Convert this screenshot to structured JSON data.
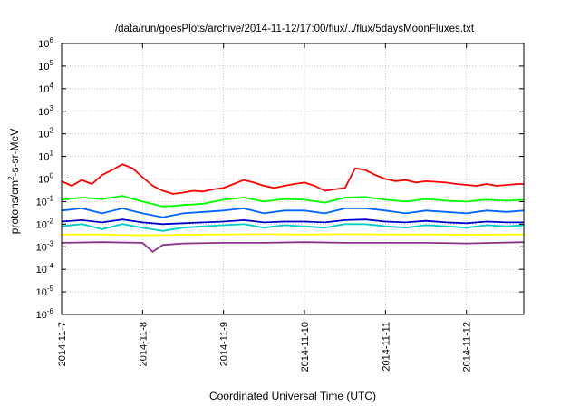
{
  "chart_data": {
    "type": "line",
    "title": "/data/run/goesPlots/archive/2014-11-12/17:00/flux/../flux/5daysMoonFluxes.txt",
    "xlabel": "Coordinated Universal Time (UTC)",
    "ylabel": {
      "prefix": "protons/cm",
      "sup": "2",
      "suffix": "-s-sr-MeV"
    },
    "x_ticks": [
      "2014-11-7",
      "2014-11-8",
      "2014-11-9",
      "2014-11-10",
      "2014-11-11",
      "2014-11-12"
    ],
    "x_range": [
      "2014-11-07T00:00",
      "2014-11-12T17:00"
    ],
    "y_scale": "log",
    "ylim": [
      1e-06,
      1000000.0
    ],
    "y_ticks": [
      {
        "base": "10",
        "exp": "-6"
      },
      {
        "base": "10",
        "exp": "-5"
      },
      {
        "base": "10",
        "exp": "-4"
      },
      {
        "base": "10",
        "exp": "-3"
      },
      {
        "base": "10",
        "exp": "-2"
      },
      {
        "base": "10",
        "exp": "-1"
      },
      {
        "base": "10",
        "exp": "0"
      },
      {
        "base": "10",
        "exp": "1"
      },
      {
        "base": "10",
        "exp": "2"
      },
      {
        "base": "10",
        "exp": "3"
      },
      {
        "base": "10",
        "exp": "4"
      },
      {
        "base": "10",
        "exp": "5"
      },
      {
        "base": "10",
        "exp": "6"
      }
    ],
    "grid": true,
    "legend": "none",
    "series": [
      {
        "color": "#ff0000",
        "points": [
          [
            "2014-11-07T00:00",
            0.8
          ],
          [
            "2014-11-07T03:00",
            0.5
          ],
          [
            "2014-11-07T06:00",
            0.9
          ],
          [
            "2014-11-07T09:00",
            0.6
          ],
          [
            "2014-11-07T12:00",
            1.5
          ],
          [
            "2014-11-07T15:00",
            2.5
          ],
          [
            "2014-11-07T18:00",
            4.5
          ],
          [
            "2014-11-07T21:00",
            3.0
          ],
          [
            "2014-11-08T00:00",
            1.2
          ],
          [
            "2014-11-08T03:00",
            0.5
          ],
          [
            "2014-11-08T06:00",
            0.3
          ],
          [
            "2014-11-08T09:00",
            0.22
          ],
          [
            "2014-11-08T12:00",
            0.25
          ],
          [
            "2014-11-08T15:00",
            0.3
          ],
          [
            "2014-11-08T18:00",
            0.28
          ],
          [
            "2014-11-08T21:00",
            0.35
          ],
          [
            "2014-11-09T00:00",
            0.4
          ],
          [
            "2014-11-09T03:00",
            0.6
          ],
          [
            "2014-11-09T06:00",
            0.9
          ],
          [
            "2014-11-09T09:00",
            0.7
          ],
          [
            "2014-11-09T12:00",
            0.5
          ],
          [
            "2014-11-09T15:00",
            0.4
          ],
          [
            "2014-11-09T18:00",
            0.5
          ],
          [
            "2014-11-09T21:00",
            0.6
          ],
          [
            "2014-11-10T00:00",
            0.7
          ],
          [
            "2014-11-10T03:00",
            0.5
          ],
          [
            "2014-11-10T06:00",
            0.3
          ],
          [
            "2014-11-10T09:00",
            0.35
          ],
          [
            "2014-11-10T12:00",
            0.4
          ],
          [
            "2014-11-10T15:00",
            3.0
          ],
          [
            "2014-11-10T18:00",
            2.5
          ],
          [
            "2014-11-10T21:00",
            1.5
          ],
          [
            "2014-11-11T00:00",
            1.0
          ],
          [
            "2014-11-11T03:00",
            0.8
          ],
          [
            "2014-11-11T06:00",
            0.9
          ],
          [
            "2014-11-11T09:00",
            0.7
          ],
          [
            "2014-11-11T12:00",
            0.8
          ],
          [
            "2014-11-11T15:00",
            0.75
          ],
          [
            "2014-11-11T18:00",
            0.7
          ],
          [
            "2014-11-11T21:00",
            0.6
          ],
          [
            "2014-11-12T00:00",
            0.55
          ],
          [
            "2014-11-12T03:00",
            0.5
          ],
          [
            "2014-11-12T06:00",
            0.6
          ],
          [
            "2014-11-12T09:00",
            0.5
          ],
          [
            "2014-11-12T12:00",
            0.55
          ],
          [
            "2014-11-12T15:00",
            0.6
          ],
          [
            "2014-11-12T17:00",
            0.6
          ]
        ]
      },
      {
        "color": "#00ff00",
        "points": [
          [
            "2014-11-07T00:00",
            0.12
          ],
          [
            "2014-11-07T06:00",
            0.15
          ],
          [
            "2014-11-07T12:00",
            0.13
          ],
          [
            "2014-11-07T18:00",
            0.18
          ],
          [
            "2014-11-08T00:00",
            0.1
          ],
          [
            "2014-11-08T06:00",
            0.06
          ],
          [
            "2014-11-08T12:00",
            0.07
          ],
          [
            "2014-11-08T18:00",
            0.08
          ],
          [
            "2014-11-09T00:00",
            0.12
          ],
          [
            "2014-11-09T06:00",
            0.15
          ],
          [
            "2014-11-09T12:00",
            0.1
          ],
          [
            "2014-11-09T18:00",
            0.13
          ],
          [
            "2014-11-10T00:00",
            0.12
          ],
          [
            "2014-11-10T06:00",
            0.09
          ],
          [
            "2014-11-10T12:00",
            0.15
          ],
          [
            "2014-11-10T18:00",
            0.16
          ],
          [
            "2014-11-11T00:00",
            0.12
          ],
          [
            "2014-11-11T06:00",
            0.1
          ],
          [
            "2014-11-11T12:00",
            0.13
          ],
          [
            "2014-11-11T18:00",
            0.11
          ],
          [
            "2014-11-12T00:00",
            0.1
          ],
          [
            "2014-11-12T06:00",
            0.12
          ],
          [
            "2014-11-12T12:00",
            0.11
          ],
          [
            "2014-11-12T17:00",
            0.12
          ]
        ]
      },
      {
        "color": "#0066ff",
        "points": [
          [
            "2014-11-07T00:00",
            0.04
          ],
          [
            "2014-11-07T06:00",
            0.05
          ],
          [
            "2014-11-07T12:00",
            0.03
          ],
          [
            "2014-11-07T18:00",
            0.05
          ],
          [
            "2014-11-08T00:00",
            0.03
          ],
          [
            "2014-11-08T06:00",
            0.02
          ],
          [
            "2014-11-08T12:00",
            0.03
          ],
          [
            "2014-11-08T18:00",
            0.035
          ],
          [
            "2014-11-09T00:00",
            0.04
          ],
          [
            "2014-11-09T06:00",
            0.05
          ],
          [
            "2014-11-09T12:00",
            0.03
          ],
          [
            "2014-11-09T18:00",
            0.04
          ],
          [
            "2014-11-10T00:00",
            0.04
          ],
          [
            "2014-11-10T06:00",
            0.03
          ],
          [
            "2014-11-10T12:00",
            0.05
          ],
          [
            "2014-11-10T18:00",
            0.05
          ],
          [
            "2014-11-11T00:00",
            0.04
          ],
          [
            "2014-11-11T06:00",
            0.03
          ],
          [
            "2014-11-11T12:00",
            0.04
          ],
          [
            "2014-11-11T18:00",
            0.035
          ],
          [
            "2014-11-12T00:00",
            0.03
          ],
          [
            "2014-11-12T06:00",
            0.04
          ],
          [
            "2014-11-12T12:00",
            0.035
          ],
          [
            "2014-11-12T17:00",
            0.04
          ]
        ]
      },
      {
        "color": "#00cccc",
        "points": [
          [
            "2014-11-07T00:00",
            0.008
          ],
          [
            "2014-11-07T06:00",
            0.01
          ],
          [
            "2014-11-07T12:00",
            0.006
          ],
          [
            "2014-11-07T18:00",
            0.01
          ],
          [
            "2014-11-08T00:00",
            0.007
          ],
          [
            "2014-11-08T06:00",
            0.005
          ],
          [
            "2014-11-08T12:00",
            0.007
          ],
          [
            "2014-11-08T18:00",
            0.008
          ],
          [
            "2014-11-09T00:00",
            0.009
          ],
          [
            "2014-11-09T06:00",
            0.01
          ],
          [
            "2014-11-09T12:00",
            0.007
          ],
          [
            "2014-11-09T18:00",
            0.009
          ],
          [
            "2014-11-10T00:00",
            0.008
          ],
          [
            "2014-11-10T06:00",
            0.007
          ],
          [
            "2014-11-10T12:00",
            0.01
          ],
          [
            "2014-11-10T18:00",
            0.01
          ],
          [
            "2014-11-11T00:00",
            0.008
          ],
          [
            "2014-11-11T06:00",
            0.007
          ],
          [
            "2014-11-11T12:00",
            0.009
          ],
          [
            "2014-11-11T18:00",
            0.008
          ],
          [
            "2014-11-12T00:00",
            0.007
          ],
          [
            "2014-11-12T06:00",
            0.009
          ],
          [
            "2014-11-12T12:00",
            0.008
          ],
          [
            "2014-11-12T17:00",
            0.009
          ]
        ]
      },
      {
        "color": "#0000cc",
        "points": [
          [
            "2014-11-07T00:00",
            0.013
          ],
          [
            "2014-11-07T06:00",
            0.015
          ],
          [
            "2014-11-07T12:00",
            0.012
          ],
          [
            "2014-11-07T18:00",
            0.016
          ],
          [
            "2014-11-08T00:00",
            0.012
          ],
          [
            "2014-11-08T06:00",
            0.01
          ],
          [
            "2014-11-08T12:00",
            0.011
          ],
          [
            "2014-11-08T18:00",
            0.012
          ],
          [
            "2014-11-09T00:00",
            0.013
          ],
          [
            "2014-11-09T06:00",
            0.015
          ],
          [
            "2014-11-09T12:00",
            0.012
          ],
          [
            "2014-11-09T18:00",
            0.013
          ],
          [
            "2014-11-10T00:00",
            0.013
          ],
          [
            "2014-11-10T06:00",
            0.012
          ],
          [
            "2014-11-10T12:00",
            0.015
          ],
          [
            "2014-11-10T18:00",
            0.016
          ],
          [
            "2014-11-11T00:00",
            0.013
          ],
          [
            "2014-11-11T06:00",
            0.012
          ],
          [
            "2014-11-11T12:00",
            0.014
          ],
          [
            "2014-11-11T18:00",
            0.012
          ],
          [
            "2014-11-12T00:00",
            0.011
          ],
          [
            "2014-11-12T06:00",
            0.013
          ],
          [
            "2014-11-12T12:00",
            0.012
          ],
          [
            "2014-11-12T17:00",
            0.012
          ]
        ]
      },
      {
        "color": "#ffff00",
        "points": [
          [
            "2014-11-07T00:00",
            0.0035
          ],
          [
            "2014-11-07T12:00",
            0.0035
          ],
          [
            "2014-11-08T00:00",
            0.0032
          ],
          [
            "2014-11-08T12:00",
            0.0034
          ],
          [
            "2014-11-09T00:00",
            0.0035
          ],
          [
            "2014-11-09T12:00",
            0.0036
          ],
          [
            "2014-11-10T00:00",
            0.0035
          ],
          [
            "2014-11-10T12:00",
            0.0036
          ],
          [
            "2014-11-11T00:00",
            0.0035
          ],
          [
            "2014-11-11T12:00",
            0.0035
          ],
          [
            "2014-11-12T00:00",
            0.0034
          ],
          [
            "2014-11-12T17:00",
            0.0035
          ]
        ]
      },
      {
        "color": "#883388",
        "points": [
          [
            "2014-11-07T00:00",
            0.0015
          ],
          [
            "2014-11-07T12:00",
            0.0016
          ],
          [
            "2014-11-08T00:00",
            0.0015
          ],
          [
            "2014-11-08T03:00",
            0.0006
          ],
          [
            "2014-11-08T06:00",
            0.0012
          ],
          [
            "2014-11-08T12:00",
            0.0014
          ],
          [
            "2014-11-09T00:00",
            0.0015
          ],
          [
            "2014-11-09T12:00",
            0.0015
          ],
          [
            "2014-11-10T00:00",
            0.0016
          ],
          [
            "2014-11-10T12:00",
            0.0015
          ],
          [
            "2014-11-11T00:00",
            0.0015
          ],
          [
            "2014-11-11T12:00",
            0.0015
          ],
          [
            "2014-11-12T00:00",
            0.0014
          ],
          [
            "2014-11-12T17:00",
            0.0016
          ]
        ]
      }
    ]
  }
}
